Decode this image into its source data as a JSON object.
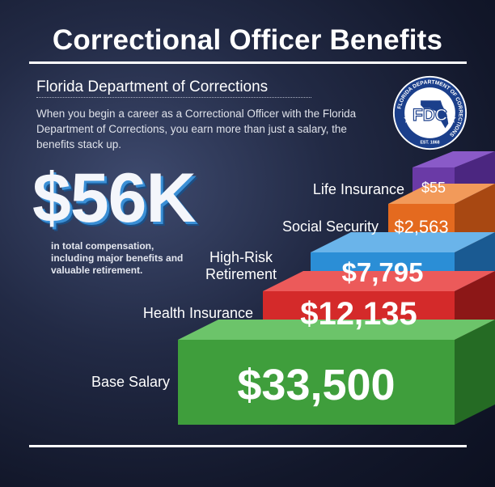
{
  "header": {
    "title": "Correctional Officer Benefits",
    "subtitle": "Florida Department of Corrections",
    "intro": "When you begin a career as a Correctional Officer with the Florida Department of Corrections, you earn more than just a salary, the benefits stack up."
  },
  "seal": {
    "ring_text": "FLORIDA DEPARTMENT OF CORRECTIONS",
    "center_text": "FDC",
    "est_text": "EST. 1868"
  },
  "highlight": {
    "amount": "$56K",
    "caption": "in total compensation, including major benefits and valuable retirement."
  },
  "benefits": [
    {
      "label": "Base Salary",
      "value": "$33,500",
      "color": "#3f9e3c"
    },
    {
      "label": "Health Insurance",
      "value": "$12,135",
      "color": "#d42a2a"
    },
    {
      "label": "High-Risk Retirement",
      "value": "$7,795",
      "color": "#2b8ed6"
    },
    {
      "label": "Social Security",
      "value": "$2,563",
      "color": "#e46a1f"
    },
    {
      "label": "Life Insurance",
      "value": "$55",
      "color": "#6a3aa6"
    }
  ]
}
